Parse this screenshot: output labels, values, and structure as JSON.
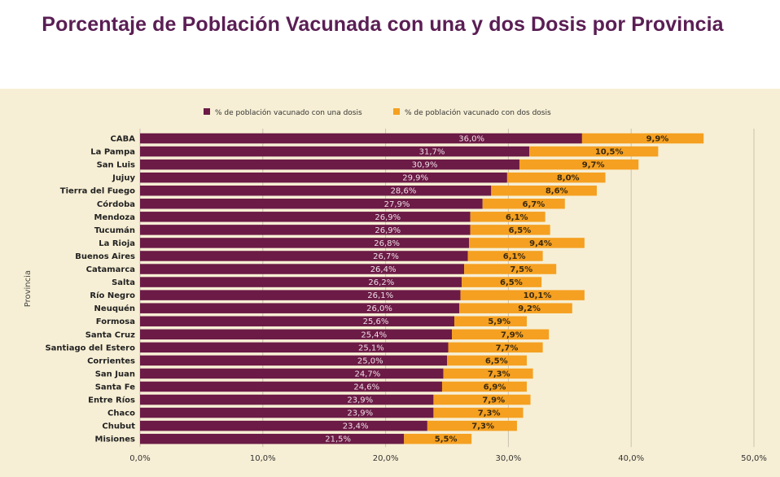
{
  "chart_data": {
    "type": "bar",
    "orientation": "horizontal",
    "stacked": true,
    "title": "Porcentaje de Población Vacunada con una y dos Dosis por Provincia",
    "ylabel": "Provincia",
    "xlabel": "",
    "xlim": [
      0,
      50
    ],
    "xticks": [
      "0,0%",
      "10,0%",
      "20,0%",
      "30,0%",
      "40,0%",
      "50,0%"
    ],
    "legend_position": "top",
    "grid": "vertical",
    "categories": [
      "CABA",
      "La Pampa",
      "San Luis",
      "Jujuy",
      "Tierra del Fuego",
      "Córdoba",
      "Mendoza",
      "Tucumán",
      "La Rioja",
      "Buenos Aires",
      "Catamarca",
      "Salta",
      "Río Negro",
      "Neuquén",
      "Formosa",
      "Santa Cruz",
      "Santiago del Estero",
      "Corrientes",
      "San Juan",
      "Santa Fe",
      "Entre Ríos",
      "Chaco",
      "Chubut",
      "Misiones"
    ],
    "series": [
      {
        "name": "% de población vacunado con una dosis",
        "color": "#6b1b46",
        "values": [
          36.0,
          31.7,
          30.9,
          29.9,
          28.6,
          27.9,
          26.9,
          26.9,
          26.8,
          26.7,
          26.4,
          26.2,
          26.1,
          26.0,
          25.6,
          25.4,
          25.1,
          25.0,
          24.7,
          24.6,
          23.9,
          23.9,
          23.4,
          21.5
        ],
        "labels": [
          "36,0%",
          "31,7%",
          "30,9%",
          "29,9%",
          "28,6%",
          "27,9%",
          "26,9%",
          "26,9%",
          "26,8%",
          "26,7%",
          "26,4%",
          "26,2%",
          "26,1%",
          "26,0%",
          "25,6%",
          "25,4%",
          "25,1%",
          "25,0%",
          "24,7%",
          "24,6%",
          "23,9%",
          "23,9%",
          "23,4%",
          "21,5%"
        ]
      },
      {
        "name": "% de población vacunado con dos dosis",
        "color": "#f5a021",
        "values": [
          9.9,
          10.5,
          9.7,
          8.0,
          8.6,
          6.7,
          6.1,
          6.5,
          9.4,
          6.1,
          7.5,
          6.5,
          10.1,
          9.2,
          5.9,
          7.9,
          7.7,
          6.5,
          7.3,
          6.9,
          7.9,
          7.3,
          7.3,
          5.5
        ],
        "labels": [
          "9,9%",
          "10,5%",
          "9,7%",
          "8,0%",
          "8,6%",
          "6,7%",
          "6,1%",
          "6,5%",
          "9,4%",
          "6,1%",
          "7,5%",
          "6,5%",
          "10,1%",
          "9,2%",
          "5,9%",
          "7,9%",
          "7,7%",
          "6,5%",
          "7,3%",
          "6,9%",
          "7,9%",
          "7,3%",
          "7,3%",
          "5,5%"
        ]
      }
    ]
  },
  "colors": {
    "title": "#5a1e54",
    "background": "#f7efd5",
    "grid": "#c9c2b0"
  }
}
